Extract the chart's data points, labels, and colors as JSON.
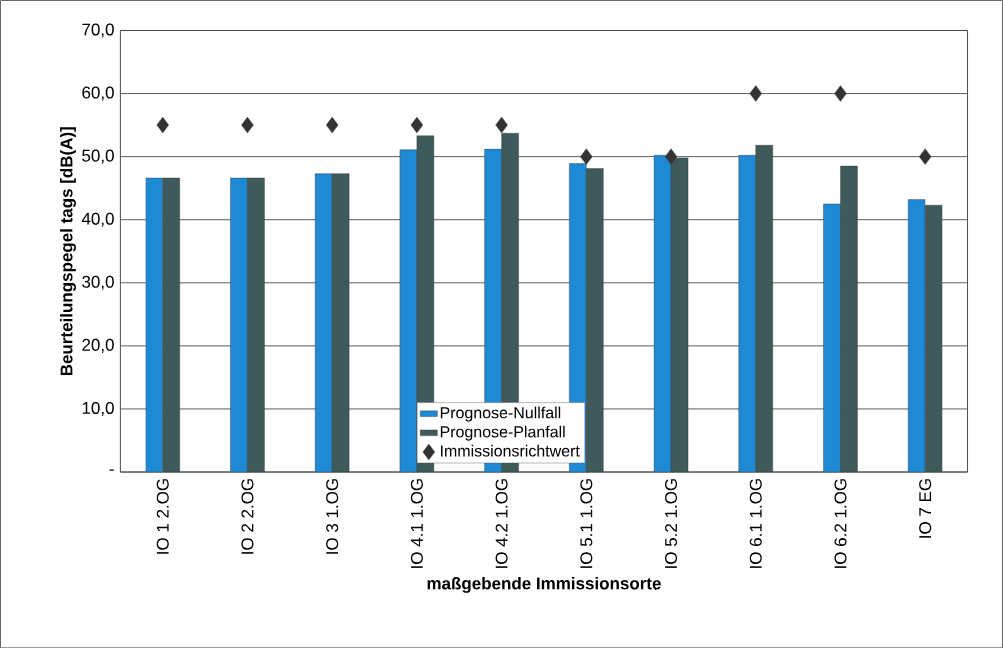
{
  "chart_data": {
    "type": "bar",
    "xlabel": "maßgebende Immissionsorte",
    "ylabel": "Beurteilungspegel tags [dB(A)]",
    "categories": [
      "IO 1 2.OG",
      "IO 2 2.OG",
      "IO 3 1.OG",
      "IO 4.1 1.OG",
      "IO 4.2 1.OG",
      "IO 5.1 1.OG",
      "IO 5.2 1.OG",
      "IO 6.1 1.OG",
      "IO 6.2 1.OG",
      "IO 7 EG"
    ],
    "series": [
      {
        "name": "Prognose-Nullfall",
        "color": "#1e8ad6",
        "values": [
          46.6,
          46.6,
          47.3,
          51.1,
          51.2,
          48.9,
          50.2,
          50.2,
          42.5,
          43.2
        ]
      },
      {
        "name": "Prognose-Planfall",
        "color": "#3f5a5a",
        "values": [
          46.6,
          46.6,
          47.3,
          53.3,
          53.7,
          48.1,
          49.8,
          51.8,
          48.5,
          42.3
        ]
      },
      {
        "name": "Immissionsrichtwert",
        "type": "scatter",
        "marker": "diamond",
        "color": "#333333",
        "values": [
          55,
          55,
          55,
          55,
          55,
          50,
          50,
          60,
          60,
          50
        ]
      }
    ],
    "ylim": [
      0,
      70
    ],
    "yticks": [
      {
        "value": 0,
        "label": "-"
      },
      {
        "value": 10,
        "label": "10,0"
      },
      {
        "value": 20,
        "label": "20,0"
      },
      {
        "value": 30,
        "label": "30,0"
      },
      {
        "value": 40,
        "label": "40,0"
      },
      {
        "value": 50,
        "label": "50,0"
      },
      {
        "value": 60,
        "label": "60,0"
      },
      {
        "value": 70,
        "label": "70,0"
      }
    ],
    "grid": "y",
    "legend": "bottom"
  }
}
